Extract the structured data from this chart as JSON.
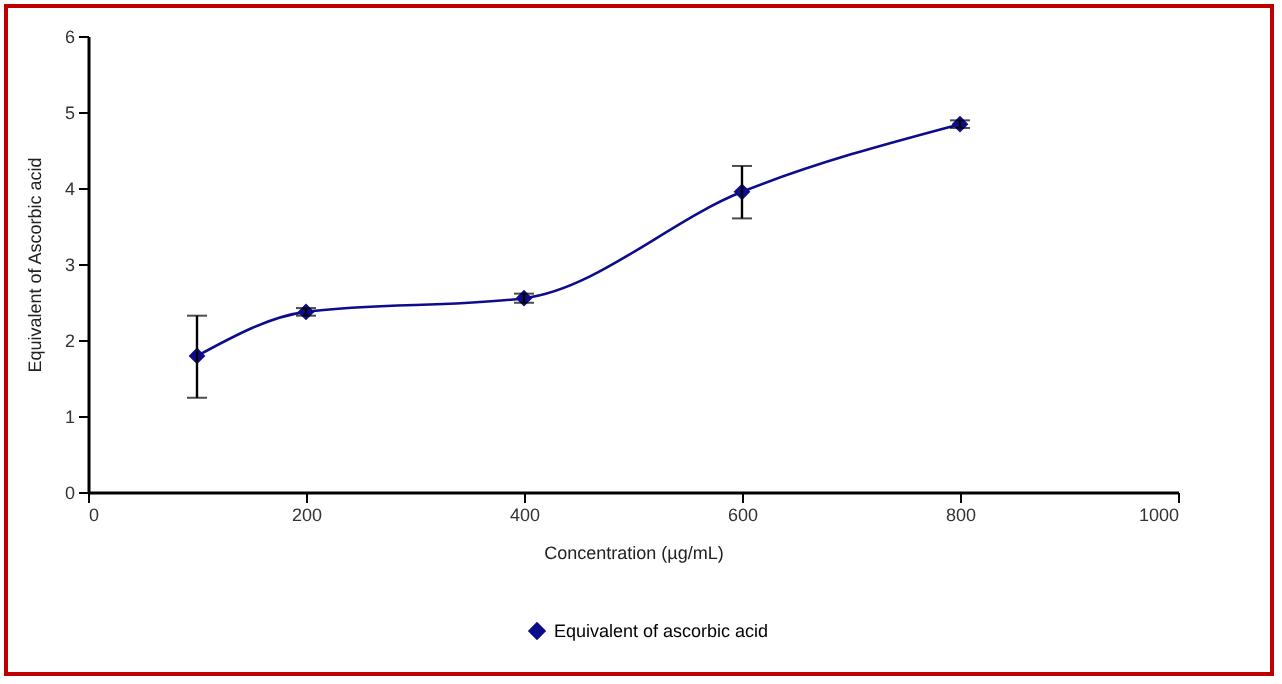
{
  "chart_data": {
    "type": "line",
    "xlabel": "Concentration (µg/mL)",
    "ylabel": "Equivalent of Ascorbic acid",
    "x": [
      100,
      200,
      400,
      600,
      800
    ],
    "series": [
      {
        "name": "Equivalent of ascorbic acid",
        "color": "#0d0d8c",
        "values": [
          1.79,
          2.37,
          2.55,
          3.95,
          4.84
        ],
        "errors": [
          [
            1.24,
            2.32
          ],
          0.05,
          0.06,
          [
            3.6,
            4.29
          ],
          0.05
        ]
      }
    ],
    "xlim": [
      0,
      1000
    ],
    "xticks": [
      0,
      200,
      400,
      600,
      800,
      1000
    ],
    "ylim": [
      0,
      6
    ],
    "yticks": [
      0,
      1,
      2,
      3,
      4,
      5,
      6
    ],
    "grid": false,
    "legend": "bottom",
    "marker": "diamond",
    "line_style": "solid"
  }
}
